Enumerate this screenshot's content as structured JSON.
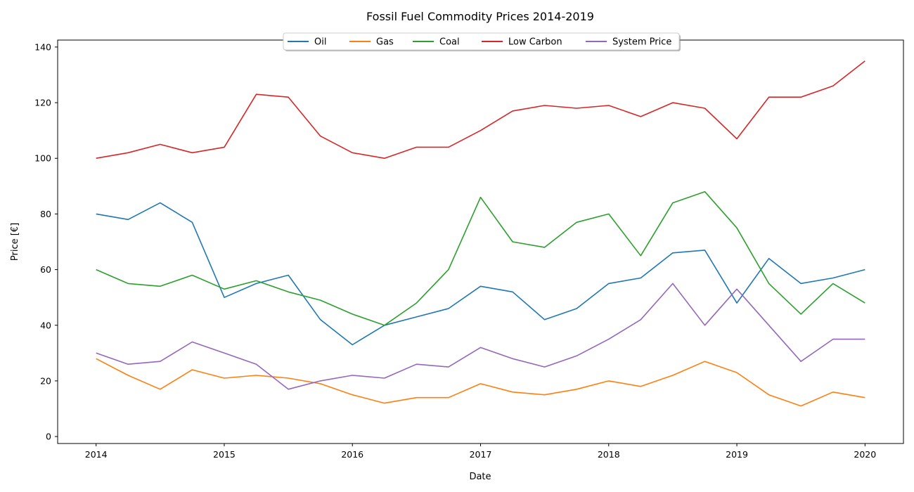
{
  "chart_data": {
    "type": "line",
    "title": "Fossil Fuel Commodity Prices 2014-2019",
    "xlabel": "Date",
    "ylabel": "Price [€]",
    "xlim": [
      2013.7,
      2020.3
    ],
    "ylim": [
      -2.5,
      142.5
    ],
    "x_ticks": [
      2014,
      2015,
      2016,
      2017,
      2018,
      2019,
      2020
    ],
    "y_ticks": [
      0,
      20,
      40,
      60,
      80,
      100,
      120,
      140
    ],
    "grid": false,
    "legend_position": "top-center",
    "x": [
      2014.0,
      2014.25,
      2014.5,
      2014.75,
      2015.0,
      2015.25,
      2015.5,
      2015.75,
      2016.0,
      2016.25,
      2016.5,
      2016.75,
      2017.0,
      2017.25,
      2017.5,
      2017.75,
      2018.0,
      2018.25,
      2018.5,
      2018.75,
      2019.0,
      2019.25,
      2019.5,
      2019.75,
      2020.0
    ],
    "series": [
      {
        "name": "Oil",
        "color": "#1f77b4",
        "values": [
          80,
          78,
          84,
          77,
          50,
          55,
          58,
          42,
          33,
          40,
          43,
          46,
          54,
          52,
          42,
          46,
          55,
          57,
          66,
          67,
          48,
          64,
          55,
          57,
          60
        ]
      },
      {
        "name": "Gas",
        "color": "#ff7f0e",
        "values": [
          28,
          22,
          17,
          24,
          21,
          22,
          21,
          19,
          15,
          12,
          14,
          14,
          19,
          16,
          15,
          17,
          20,
          18,
          22,
          27,
          23,
          15,
          11,
          16,
          14
        ]
      },
      {
        "name": "Coal",
        "color": "#2ca02c",
        "values": [
          60,
          55,
          54,
          58,
          53,
          56,
          52,
          49,
          44,
          40,
          48,
          60,
          86,
          70,
          68,
          77,
          80,
          65,
          84,
          88,
          75,
          55,
          44,
          55,
          48
        ]
      },
      {
        "name": "Low Carbon",
        "color": "#d62728",
        "values": [
          100,
          102,
          105,
          102,
          104,
          123,
          122,
          108,
          102,
          100,
          104,
          104,
          110,
          117,
          119,
          118,
          119,
          115,
          120,
          118,
          107,
          122,
          122,
          126,
          135
        ]
      },
      {
        "name": "System Price",
        "color": "#9467bd",
        "values": [
          30,
          26,
          27,
          34,
          30,
          26,
          17,
          20,
          22,
          21,
          26,
          25,
          32,
          28,
          25,
          29,
          35,
          42,
          55,
          40,
          53,
          40,
          27,
          35,
          35
        ]
      }
    ]
  }
}
